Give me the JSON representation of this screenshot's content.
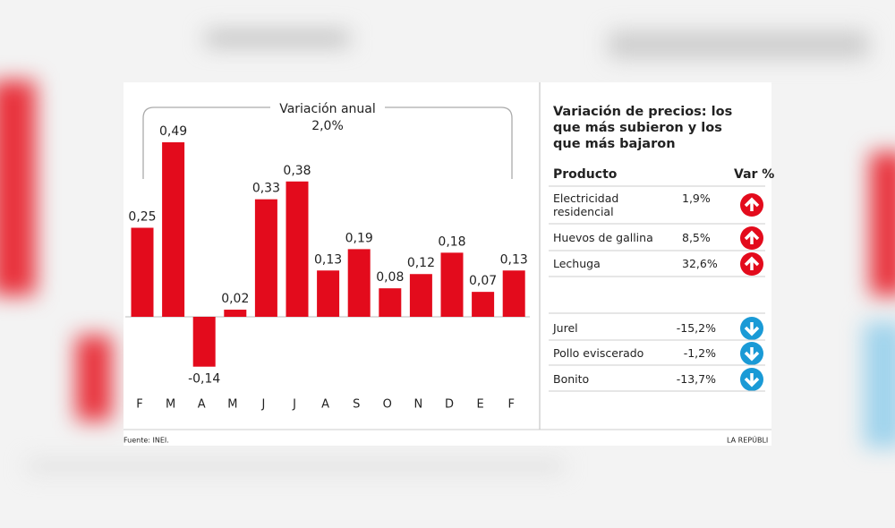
{
  "chart_data": {
    "type": "bar",
    "annotation": "Variación anual",
    "annotation_value": "2,0%",
    "categories": [
      "F",
      "M",
      "A",
      "M",
      "J",
      "J",
      "A",
      "S",
      "O",
      "N",
      "D",
      "E",
      "F"
    ],
    "values": [
      0.25,
      0.49,
      -0.14,
      0.02,
      0.33,
      0.38,
      0.13,
      0.19,
      0.08,
      0.12,
      0.18,
      0.07,
      0.13
    ],
    "value_labels": [
      "0,25",
      "0,49",
      "-0,14",
      "0,02",
      "0,33",
      "0,38",
      "0,13",
      "0,19",
      "0,08",
      "0,12",
      "0,18",
      "0,07",
      "0,13"
    ],
    "color": "#e30b1c"
  },
  "table": {
    "title": "Variación de precios: los que más subieron y los que más bajaron",
    "headers": [
      "Producto",
      "Var %"
    ],
    "rose": [
      [
        "Electricidad residencial",
        "1,9%"
      ],
      [
        "Huevos de gallina",
        "8,5%"
      ],
      [
        "Lechuga",
        "32,6%"
      ]
    ],
    "fell": [
      [
        "Jurel",
        "-15,2%"
      ],
      [
        "Pollo eviscerado",
        "-1,2%"
      ],
      [
        "Bonito",
        "-13,7%"
      ]
    ]
  },
  "source": "Fuente: INEI.",
  "credit": "LA REPÚBLI"
}
